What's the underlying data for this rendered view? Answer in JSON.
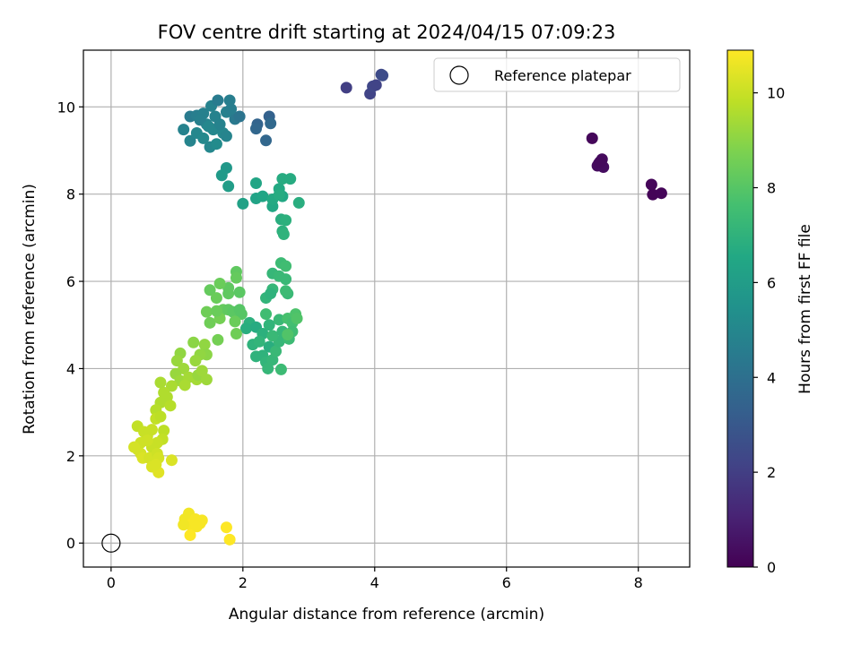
{
  "chart_data": {
    "type": "scatter",
    "title": "FOV centre drift starting at 2024/04/15 07:09:23",
    "xlabel": "Angular distance from reference (arcmin)",
    "ylabel": "Rotation from reference (arcmin)",
    "xlim": [
      -0.42,
      8.78
    ],
    "ylim": [
      -0.55,
      11.3
    ],
    "xticks": [
      0,
      2,
      4,
      6,
      8
    ],
    "yticks": [
      0,
      2,
      4,
      6,
      8,
      10
    ],
    "grid": true,
    "legend": {
      "placement": "top-right",
      "label": "Reference platepar",
      "marker": "hollow-circle"
    },
    "reference_point": {
      "x": 0,
      "y": 0,
      "label": "Reference platepar"
    },
    "colorbar": {
      "label": "Hours from first FF file",
      "colormap": "viridis",
      "range": [
        0,
        10.9
      ],
      "ticks": [
        0,
        2,
        4,
        6,
        8,
        10
      ]
    },
    "series": [
      {
        "c_unit": "hours",
        "points": [
          {
            "x": 7.3,
            "y": 9.28,
            "c": 0.2
          },
          {
            "x": 7.4,
            "y": 8.7,
            "c": 0.25
          },
          {
            "x": 7.45,
            "y": 8.8,
            "c": 0.3
          },
          {
            "x": 7.38,
            "y": 8.65,
            "c": 0.32
          },
          {
            "x": 7.47,
            "y": 8.62,
            "c": 0.35
          },
          {
            "x": 7.42,
            "y": 8.74,
            "c": 0.28
          },
          {
            "x": 8.2,
            "y": 8.22,
            "c": 0.15
          },
          {
            "x": 8.22,
            "y": 7.99,
            "c": 0.1
          },
          {
            "x": 8.35,
            "y": 8.02,
            "c": 0.12
          },
          {
            "x": 3.57,
            "y": 10.44,
            "c": 2.0
          },
          {
            "x": 3.93,
            "y": 10.3,
            "c": 2.2
          },
          {
            "x": 3.97,
            "y": 10.47,
            "c": 2.3
          },
          {
            "x": 4.02,
            "y": 10.5,
            "c": 2.2
          },
          {
            "x": 4.1,
            "y": 10.74,
            "c": 2.4
          },
          {
            "x": 4.12,
            "y": 10.72,
            "c": 2.5
          },
          {
            "x": 1.2,
            "y": 9.78,
            "c": 4.5
          },
          {
            "x": 1.3,
            "y": 9.8,
            "c": 4.6
          },
          {
            "x": 1.4,
            "y": 9.85,
            "c": 4.7
          },
          {
            "x": 1.52,
            "y": 10.02,
            "c": 4.8
          },
          {
            "x": 1.62,
            "y": 10.15,
            "c": 4.5
          },
          {
            "x": 1.8,
            "y": 10.15,
            "c": 4.6
          },
          {
            "x": 1.88,
            "y": 9.72,
            "c": 4.4
          },
          {
            "x": 1.95,
            "y": 9.78,
            "c": 4.2
          },
          {
            "x": 2.22,
            "y": 9.6,
            "c": 3.5
          },
          {
            "x": 2.2,
            "y": 9.5,
            "c": 3.6
          },
          {
            "x": 2.4,
            "y": 9.78,
            "c": 3.4
          },
          {
            "x": 2.42,
            "y": 9.62,
            "c": 3.7
          },
          {
            "x": 2.35,
            "y": 9.23,
            "c": 3.6
          },
          {
            "x": 1.1,
            "y": 9.48,
            "c": 4.8
          },
          {
            "x": 1.2,
            "y": 9.22,
            "c": 4.9
          },
          {
            "x": 1.3,
            "y": 9.4,
            "c": 5.0
          },
          {
            "x": 1.4,
            "y": 9.28,
            "c": 5.1
          },
          {
            "x": 1.5,
            "y": 9.08,
            "c": 5.0
          },
          {
            "x": 1.6,
            "y": 9.15,
            "c": 5.2
          },
          {
            "x": 1.7,
            "y": 9.4,
            "c": 5.0
          },
          {
            "x": 1.75,
            "y": 9.33,
            "c": 4.9
          },
          {
            "x": 1.55,
            "y": 9.48,
            "c": 5.0
          },
          {
            "x": 1.45,
            "y": 9.6,
            "c": 4.9
          },
          {
            "x": 1.65,
            "y": 9.6,
            "c": 4.8
          },
          {
            "x": 1.75,
            "y": 9.88,
            "c": 4.7
          },
          {
            "x": 1.82,
            "y": 9.95,
            "c": 4.6
          },
          {
            "x": 1.35,
            "y": 9.7,
            "c": 4.7
          },
          {
            "x": 1.58,
            "y": 9.78,
            "c": 4.8
          },
          {
            "x": 1.48,
            "y": 9.55,
            "c": 5.0
          },
          {
            "x": 1.75,
            "y": 8.6,
            "c": 5.8
          },
          {
            "x": 1.68,
            "y": 8.43,
            "c": 5.9
          },
          {
            "x": 1.78,
            "y": 8.18,
            "c": 6.0
          },
          {
            "x": 2.0,
            "y": 7.78,
            "c": 6.2
          },
          {
            "x": 2.2,
            "y": 7.9,
            "c": 6.3
          },
          {
            "x": 2.3,
            "y": 7.95,
            "c": 6.4
          },
          {
            "x": 2.2,
            "y": 8.25,
            "c": 6.4
          },
          {
            "x": 2.45,
            "y": 7.72,
            "c": 6.5
          },
          {
            "x": 2.45,
            "y": 7.88,
            "c": 6.6
          },
          {
            "x": 2.6,
            "y": 7.95,
            "c": 6.5
          },
          {
            "x": 2.55,
            "y": 8.12,
            "c": 6.6
          },
          {
            "x": 2.6,
            "y": 8.35,
            "c": 6.7
          },
          {
            "x": 2.72,
            "y": 8.35,
            "c": 6.7
          },
          {
            "x": 2.58,
            "y": 7.42,
            "c": 6.8
          },
          {
            "x": 2.65,
            "y": 7.4,
            "c": 6.9
          },
          {
            "x": 2.6,
            "y": 7.15,
            "c": 6.9
          },
          {
            "x": 2.62,
            "y": 7.08,
            "c": 7.0
          },
          {
            "x": 2.85,
            "y": 7.8,
            "c": 6.8
          },
          {
            "x": 2.55,
            "y": 7.98,
            "c": 6.7
          },
          {
            "x": 2.45,
            "y": 6.18,
            "c": 7.2
          },
          {
            "x": 2.55,
            "y": 6.12,
            "c": 7.3
          },
          {
            "x": 2.58,
            "y": 6.42,
            "c": 7.4
          },
          {
            "x": 2.65,
            "y": 6.35,
            "c": 7.5
          },
          {
            "x": 2.65,
            "y": 6.05,
            "c": 7.3
          },
          {
            "x": 2.45,
            "y": 5.82,
            "c": 7.2
          },
          {
            "x": 2.68,
            "y": 5.72,
            "c": 7.3
          },
          {
            "x": 2.35,
            "y": 5.62,
            "c": 7.1
          },
          {
            "x": 2.42,
            "y": 5.72,
            "c": 7.0
          },
          {
            "x": 2.65,
            "y": 5.78,
            "c": 7.4
          },
          {
            "x": 2.1,
            "y": 5.05,
            "c": 6.9
          },
          {
            "x": 2.05,
            "y": 4.92,
            "c": 6.8
          },
          {
            "x": 2.2,
            "y": 4.95,
            "c": 6.7
          },
          {
            "x": 2.3,
            "y": 4.8,
            "c": 6.9
          },
          {
            "x": 2.4,
            "y": 4.5,
            "c": 6.8
          },
          {
            "x": 2.3,
            "y": 4.3,
            "c": 7.0
          },
          {
            "x": 2.35,
            "y": 4.15,
            "c": 7.1
          },
          {
            "x": 2.38,
            "y": 4.0,
            "c": 7.2
          },
          {
            "x": 2.45,
            "y": 4.2,
            "c": 7.2
          },
          {
            "x": 2.5,
            "y": 4.4,
            "c": 7.3
          },
          {
            "x": 2.58,
            "y": 3.98,
            "c": 7.4
          },
          {
            "x": 2.15,
            "y": 4.55,
            "c": 7.0
          },
          {
            "x": 2.2,
            "y": 4.28,
            "c": 7.0
          },
          {
            "x": 2.25,
            "y": 4.62,
            "c": 7.1
          },
          {
            "x": 2.55,
            "y": 4.62,
            "c": 7.2
          },
          {
            "x": 2.45,
            "y": 4.75,
            "c": 7.3
          },
          {
            "x": 2.6,
            "y": 4.85,
            "c": 7.2
          },
          {
            "x": 2.4,
            "y": 5.0,
            "c": 7.1
          },
          {
            "x": 2.55,
            "y": 5.12,
            "c": 7.3
          },
          {
            "x": 2.35,
            "y": 5.25,
            "c": 7.5
          },
          {
            "x": 2.68,
            "y": 5.15,
            "c": 7.7
          },
          {
            "x": 2.75,
            "y": 5.05,
            "c": 7.6
          },
          {
            "x": 2.8,
            "y": 5.25,
            "c": 7.8
          },
          {
            "x": 2.75,
            "y": 4.85,
            "c": 7.5
          },
          {
            "x": 2.7,
            "y": 4.68,
            "c": 7.4
          },
          {
            "x": 2.82,
            "y": 5.15,
            "c": 7.9
          },
          {
            "x": 2.68,
            "y": 4.78,
            "c": 7.9
          },
          {
            "x": 1.9,
            "y": 6.22,
            "c": 8.2
          },
          {
            "x": 1.9,
            "y": 6.08,
            "c": 8.3
          },
          {
            "x": 1.78,
            "y": 5.85,
            "c": 8.2
          },
          {
            "x": 1.65,
            "y": 5.95,
            "c": 8.4
          },
          {
            "x": 1.5,
            "y": 5.8,
            "c": 8.3
          },
          {
            "x": 1.78,
            "y": 5.72,
            "c": 8.2
          },
          {
            "x": 1.95,
            "y": 5.75,
            "c": 8.1
          },
          {
            "x": 1.6,
            "y": 5.62,
            "c": 8.4
          },
          {
            "x": 1.7,
            "y": 5.35,
            "c": 8.3
          },
          {
            "x": 1.78,
            "y": 5.35,
            "c": 8.2
          },
          {
            "x": 1.85,
            "y": 5.3,
            "c": 8.1
          },
          {
            "x": 1.95,
            "y": 5.35,
            "c": 8.0
          },
          {
            "x": 1.98,
            "y": 5.25,
            "c": 8.0
          },
          {
            "x": 1.5,
            "y": 5.05,
            "c": 8.5
          },
          {
            "x": 1.45,
            "y": 5.3,
            "c": 8.5
          },
          {
            "x": 1.65,
            "y": 5.15,
            "c": 8.6
          },
          {
            "x": 1.88,
            "y": 5.08,
            "c": 8.4
          },
          {
            "x": 1.9,
            "y": 4.8,
            "c": 8.5
          },
          {
            "x": 1.62,
            "y": 4.66,
            "c": 8.6
          },
          {
            "x": 1.6,
            "y": 5.32,
            "c": 8.4
          },
          {
            "x": 1.25,
            "y": 4.6,
            "c": 9.0
          },
          {
            "x": 1.42,
            "y": 4.55,
            "c": 9.1
          },
          {
            "x": 1.45,
            "y": 4.32,
            "c": 9.0
          },
          {
            "x": 1.35,
            "y": 4.32,
            "c": 9.1
          },
          {
            "x": 1.28,
            "y": 4.18,
            "c": 9.2
          },
          {
            "x": 1.05,
            "y": 4.35,
            "c": 9.1
          },
          {
            "x": 1.0,
            "y": 4.18,
            "c": 9.2
          },
          {
            "x": 1.1,
            "y": 4.0,
            "c": 9.3
          },
          {
            "x": 0.98,
            "y": 3.88,
            "c": 9.2
          },
          {
            "x": 1.05,
            "y": 3.72,
            "c": 9.3
          },
          {
            "x": 1.18,
            "y": 3.8,
            "c": 9.4
          },
          {
            "x": 1.3,
            "y": 3.75,
            "c": 9.4
          },
          {
            "x": 1.32,
            "y": 3.85,
            "c": 9.2
          },
          {
            "x": 1.45,
            "y": 3.75,
            "c": 9.3
          },
          {
            "x": 1.38,
            "y": 3.95,
            "c": 9.3
          },
          {
            "x": 1.12,
            "y": 3.62,
            "c": 9.5
          },
          {
            "x": 0.92,
            "y": 3.6,
            "c": 9.5
          },
          {
            "x": 0.85,
            "y": 3.35,
            "c": 9.6
          },
          {
            "x": 0.75,
            "y": 3.22,
            "c": 9.6
          },
          {
            "x": 0.9,
            "y": 3.15,
            "c": 9.7
          },
          {
            "x": 0.8,
            "y": 3.45,
            "c": 9.6
          },
          {
            "x": 0.75,
            "y": 3.68,
            "c": 9.5
          },
          {
            "x": 0.68,
            "y": 3.05,
            "c": 9.7
          },
          {
            "x": 0.4,
            "y": 2.68,
            "c": 9.9
          },
          {
            "x": 0.5,
            "y": 2.55,
            "c": 10.0
          },
          {
            "x": 0.55,
            "y": 2.45,
            "c": 10.0
          },
          {
            "x": 0.62,
            "y": 2.6,
            "c": 10.0
          },
          {
            "x": 0.68,
            "y": 2.85,
            "c": 9.9
          },
          {
            "x": 0.75,
            "y": 2.9,
            "c": 9.8
          },
          {
            "x": 0.8,
            "y": 2.58,
            "c": 9.8
          },
          {
            "x": 0.78,
            "y": 2.38,
            "c": 9.9
          },
          {
            "x": 0.7,
            "y": 2.3,
            "c": 10.0
          },
          {
            "x": 0.62,
            "y": 2.2,
            "c": 10.0
          },
          {
            "x": 0.55,
            "y": 2.35,
            "c": 10.1
          },
          {
            "x": 0.45,
            "y": 2.3,
            "c": 10.1
          },
          {
            "x": 0.4,
            "y": 2.15,
            "c": 10.1
          },
          {
            "x": 0.35,
            "y": 2.2,
            "c": 10.2
          },
          {
            "x": 0.45,
            "y": 2.05,
            "c": 10.2
          },
          {
            "x": 0.48,
            "y": 1.95,
            "c": 10.3
          },
          {
            "x": 0.58,
            "y": 1.95,
            "c": 10.2
          },
          {
            "x": 0.7,
            "y": 2.05,
            "c": 10.1
          },
          {
            "x": 0.72,
            "y": 1.95,
            "c": 10.2
          },
          {
            "x": 0.62,
            "y": 1.75,
            "c": 10.3
          },
          {
            "x": 0.72,
            "y": 1.62,
            "c": 10.4
          },
          {
            "x": 0.92,
            "y": 1.9,
            "c": 10.3
          },
          {
            "x": 0.68,
            "y": 1.8,
            "c": 10.3
          },
          {
            "x": 1.12,
            "y": 0.55,
            "c": 10.7
          },
          {
            "x": 1.18,
            "y": 0.68,
            "c": 10.7
          },
          {
            "x": 1.28,
            "y": 0.55,
            "c": 10.8
          },
          {
            "x": 1.35,
            "y": 0.45,
            "c": 10.8
          },
          {
            "x": 1.2,
            "y": 0.42,
            "c": 10.8
          },
          {
            "x": 1.1,
            "y": 0.42,
            "c": 10.7
          },
          {
            "x": 1.38,
            "y": 0.52,
            "c": 10.8
          },
          {
            "x": 1.3,
            "y": 0.38,
            "c": 10.8
          },
          {
            "x": 1.2,
            "y": 0.18,
            "c": 10.9
          },
          {
            "x": 1.75,
            "y": 0.36,
            "c": 10.9
          },
          {
            "x": 1.8,
            "y": 0.08,
            "c": 10.9
          }
        ]
      }
    ]
  }
}
